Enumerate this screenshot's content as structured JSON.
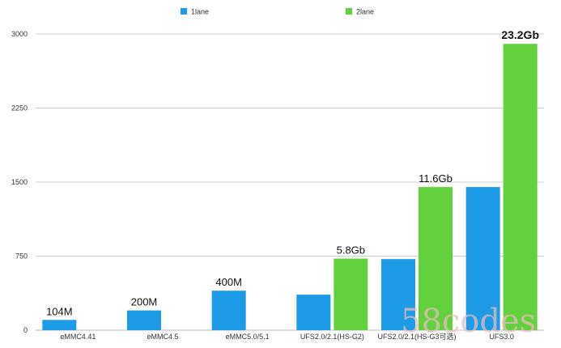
{
  "chart_data": {
    "type": "bar",
    "categories": [
      "eMMC4.41",
      "eMMC4.5",
      "eMMC5.0/5.1",
      "UFS2.0/2.1(HS-G2)",
      "UFS2.0/2.1(HS-G3可选)",
      "UFS3.0"
    ],
    "series": [
      {
        "name": "1lane",
        "color": "#1e9be6",
        "values": [
          104,
          200,
          400,
          360,
          720,
          1450
        ]
      },
      {
        "name": "2lane",
        "color": "#63d13e",
        "values": [
          null,
          null,
          null,
          725,
          1450,
          2900
        ]
      }
    ],
    "data_labels": [
      {
        "series": 0,
        "category": 0,
        "text": "104M"
      },
      {
        "series": 0,
        "category": 1,
        "text": "200M"
      },
      {
        "series": 0,
        "category": 2,
        "text": "400M"
      },
      {
        "series": 1,
        "category": 3,
        "text": "5.8Gb"
      },
      {
        "series": 1,
        "category": 4,
        "text": "11.6Gb"
      },
      {
        "series": 1,
        "category": 5,
        "text": "23.2Gb",
        "bold": true
      }
    ],
    "ylim": [
      0,
      3000
    ],
    "yticks": [
      0,
      750,
      1500,
      2250,
      3000
    ],
    "grid": true,
    "legend_position": "top-center",
    "title": "",
    "xlabel": "",
    "ylabel": ""
  },
  "watermark": {
    "text": "58codes"
  }
}
